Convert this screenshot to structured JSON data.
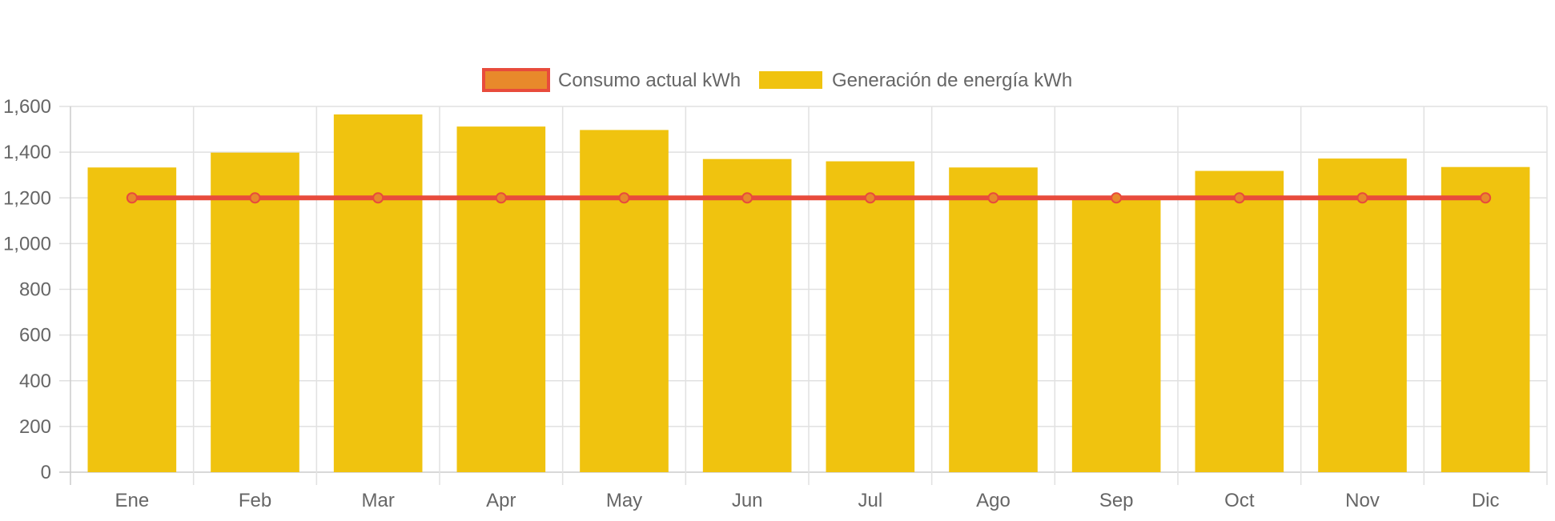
{
  "legend": {
    "items": [
      {
        "label": "Consumo actual kWh",
        "color": "#E8892B",
        "border": "#E84B3C"
      },
      {
        "label": "Generación de energía kWh",
        "color": "#F0C30F",
        "border": "#F0C30F"
      }
    ]
  },
  "chart_data": {
    "type": "bar",
    "categories": [
      "Ene",
      "Feb",
      "Mar",
      "Apr",
      "May",
      "Jun",
      "Jul",
      "Ago",
      "Sep",
      "Oct",
      "Nov",
      "Dic"
    ],
    "series": [
      {
        "name": "Generación de energía kWh",
        "type": "bar",
        "color": "#F0C30F",
        "values": [
          1333,
          1398,
          1565,
          1512,
          1497,
          1370,
          1360,
          1333,
          1200,
          1318,
          1372,
          1335
        ]
      },
      {
        "name": "Consumo actual kWh",
        "type": "line",
        "color": "#E84B3C",
        "values": [
          1200,
          1200,
          1200,
          1200,
          1200,
          1200,
          1200,
          1200,
          1200,
          1200,
          1200,
          1200
        ]
      }
    ],
    "ylim": [
      0,
      1600
    ],
    "yticks": [
      "0",
      "200",
      "400",
      "600",
      "800",
      "1,000",
      "1,200",
      "1,400",
      "1,600"
    ],
    "grid": true,
    "legend_position": "top"
  }
}
